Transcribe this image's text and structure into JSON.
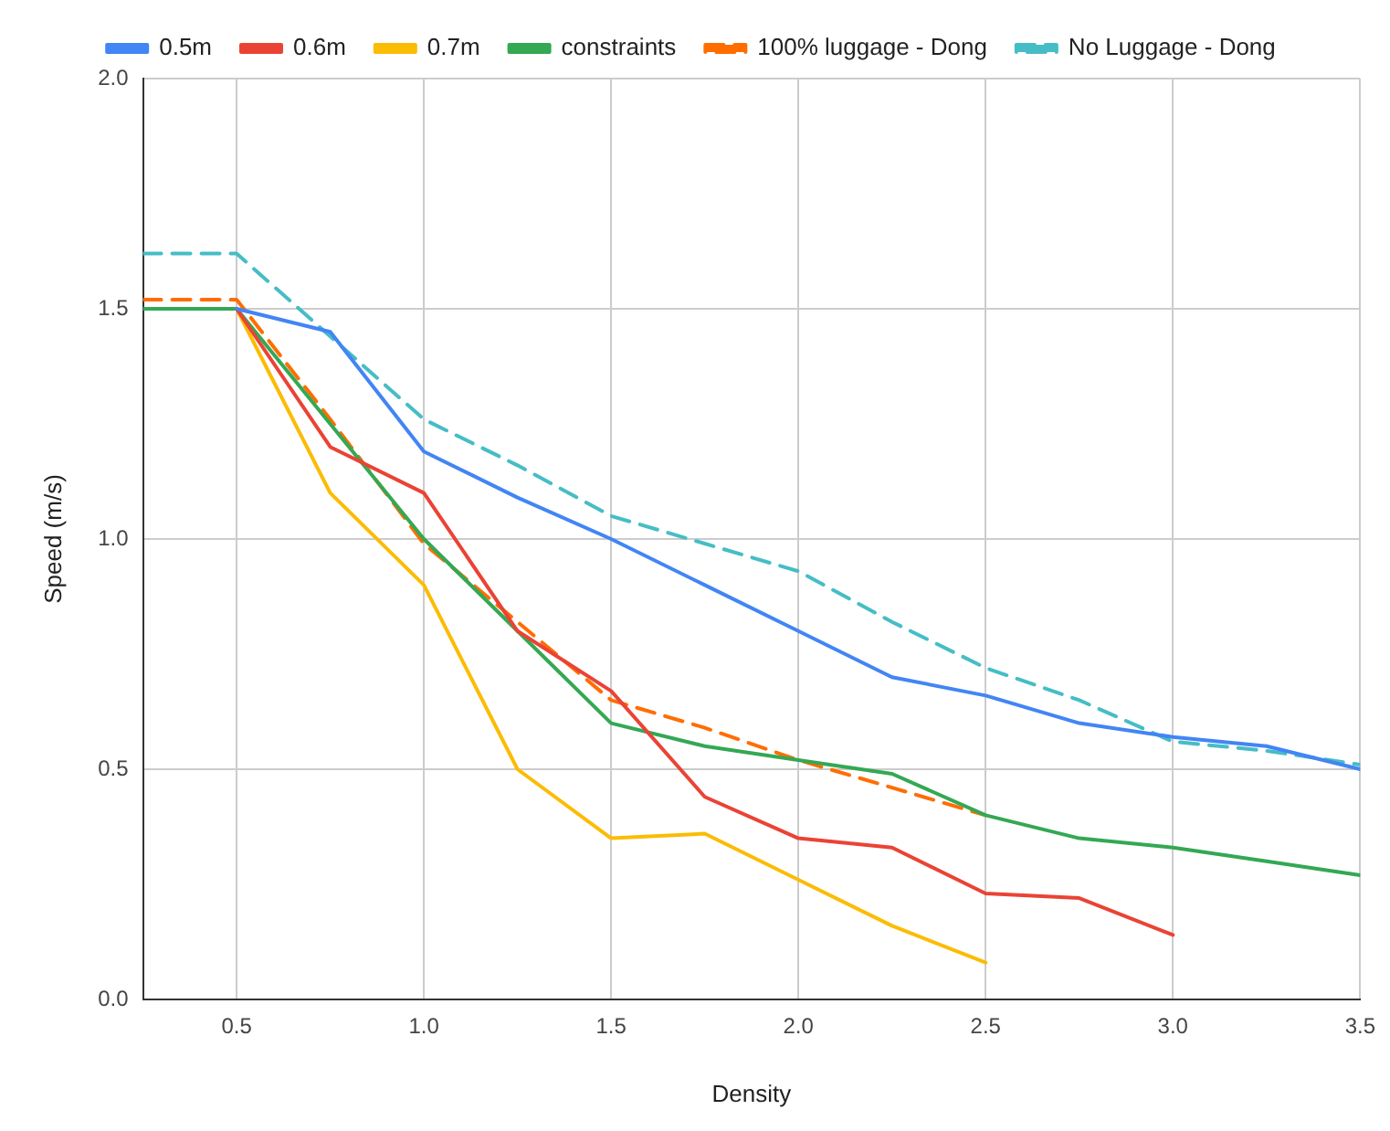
{
  "chart_data": {
    "type": "line",
    "xlabel": "Density",
    "ylabel": "Speed (m/s)",
    "xlim": [
      0.25,
      3.5
    ],
    "xticks": [
      0.5,
      {
        "value": 1,
        "label": "1.0"
      },
      1.5,
      {
        "value": 2,
        "label": "2.0"
      },
      2.5,
      {
        "value": 3,
        "label": "3.0"
      },
      3.5
    ],
    "ylim": [
      0,
      2
    ],
    "yticks": [
      {
        "value": 0,
        "label": "0.0"
      },
      0.5,
      {
        "value": 1,
        "label": "1.0"
      },
      1.5,
      {
        "value": 2,
        "label": "2.0"
      }
    ],
    "grid": true,
    "legend": "top",
    "marker": "none",
    "series": [
      {
        "name": "0.5m",
        "color": "#4285f4",
        "x": [
          0.5,
          0.75,
          1,
          1.25,
          1.5,
          1.75,
          2,
          2.25,
          2.5,
          2.75,
          3,
          3.25,
          3.5
        ],
        "values": [
          1.5,
          1.45,
          1.19,
          1.09,
          1.0,
          0.9,
          0.8,
          0.7,
          0.66,
          0.6,
          0.57,
          0.55,
          0.5
        ]
      },
      {
        "name": "0.6m",
        "color": "#ea4335",
        "x": [
          0.5,
          0.75,
          1,
          1.25,
          1.5,
          1.75,
          2,
          2.25,
          2.5,
          2.75,
          3
        ],
        "values": [
          1.5,
          1.2,
          1.1,
          0.8,
          0.67,
          0.44,
          0.35,
          0.33,
          0.23,
          0.22,
          0.14
        ]
      },
      {
        "name": "0.7m",
        "color": "#fbbc04",
        "x": [
          0.5,
          0.75,
          1,
          1.25,
          1.5,
          1.75,
          2,
          2.25,
          2.5
        ],
        "values": [
          1.5,
          1.1,
          0.9,
          0.5,
          0.35,
          0.36,
          0.26,
          0.16,
          0.08
        ]
      },
      {
        "name": "constraints",
        "color": "#34a853",
        "x": [
          0.25,
          0.5,
          0.75,
          1,
          1.25,
          1.5,
          1.75,
          2,
          2.25,
          2.5,
          2.75,
          3,
          3.25,
          3.5
        ],
        "values": [
          1.5,
          1.5,
          1.25,
          1.0,
          0.8,
          0.6,
          0.55,
          0.52,
          0.49,
          0.4,
          0.35,
          0.33,
          0.3,
          0.27
        ]
      },
      {
        "name": "100% luggage - Dong",
        "color": "#ff6d01",
        "line_style": "dashed",
        "x": [
          0.25,
          0.5,
          0.75,
          1,
          1.25,
          1.5,
          1.75,
          2,
          2.25,
          2.5
        ],
        "values": [
          1.52,
          1.52,
          1.26,
          0.99,
          0.82,
          0.65,
          0.59,
          0.52,
          0.46,
          0.4
        ]
      },
      {
        "name": "No Luggage - Dong",
        "color": "#46bdc6",
        "line_style": "dashed",
        "x": [
          0.25,
          0.5,
          0.75,
          1,
          1.25,
          1.5,
          1.75,
          2,
          2.25,
          2.5,
          2.75,
          3,
          3.25,
          3.5
        ],
        "values": [
          1.62,
          1.62,
          1.44,
          1.26,
          1.16,
          1.05,
          0.99,
          0.93,
          0.82,
          0.72,
          0.65,
          0.56,
          0.54,
          0.51
        ]
      }
    ]
  }
}
